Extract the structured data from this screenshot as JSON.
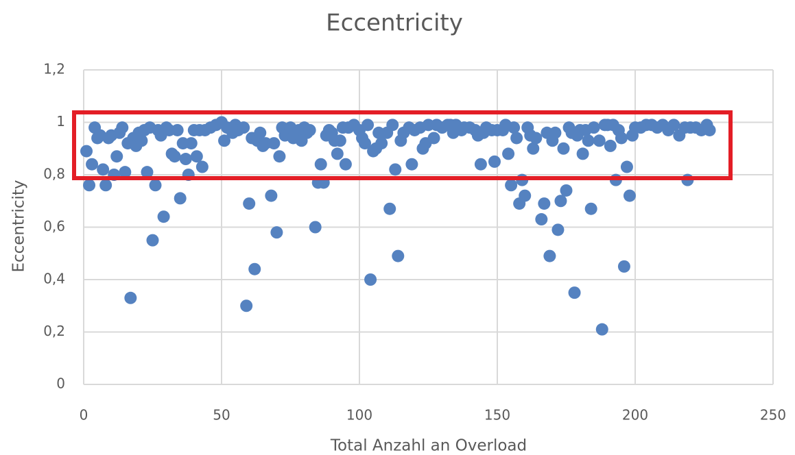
{
  "chart_data": {
    "type": "scatter",
    "title": "Eccentricity",
    "xlabel": "Total Anzahl an Overload",
    "ylabel": "Eccentricity",
    "color": "#5582c0",
    "grid": true,
    "xlim": [
      0,
      250
    ],
    "xticks": [
      0,
      50,
      100,
      150,
      200,
      250
    ],
    "ylim": [
      0,
      1.2
    ],
    "yticks": [
      0,
      {
        "value": 0.2,
        "label": "0,2"
      },
      {
        "value": 0.4,
        "label": "0,4"
      },
      {
        "value": 0.6,
        "label": "0,6"
      },
      {
        "value": 0.8,
        "label": "0,8"
      },
      1,
      {
        "value": 1.2,
        "label": "1,2"
      }
    ],
    "x": [
      1,
      2,
      3,
      4,
      5,
      6,
      7,
      8,
      9,
      10,
      11,
      12,
      13,
      14,
      15,
      16,
      17,
      18,
      19,
      20,
      21,
      22,
      23,
      24,
      25,
      26,
      27,
      28,
      29,
      30,
      31,
      32,
      33,
      34,
      35,
      36,
      37,
      38,
      39,
      40,
      41,
      42,
      43,
      44,
      46,
      48,
      50,
      51,
      52,
      54,
      55,
      56,
      58,
      59,
      60,
      61,
      62,
      63,
      64,
      65,
      66,
      68,
      69,
      70,
      71,
      72,
      73,
      75,
      76,
      78,
      79,
      80,
      81,
      82,
      84,
      85,
      86,
      87,
      88,
      89,
      90,
      91,
      92,
      93,
      94,
      95,
      96,
      98,
      100,
      101,
      102,
      103,
      104,
      105,
      106,
      107,
      108,
      110,
      111,
      112,
      113,
      114,
      115,
      116,
      118,
      119,
      120,
      122,
      123,
      124,
      125,
      127,
      128,
      130,
      132,
      133,
      134,
      135,
      137,
      138,
      140,
      142,
      143,
      144,
      145,
      146,
      148,
      149,
      150,
      152,
      153,
      154,
      155,
      156,
      157,
      158,
      159,
      160,
      161,
      162,
      163,
      164,
      166,
      167,
      168,
      169,
      170,
      171,
      172,
      173,
      174,
      175,
      176,
      177,
      178,
      179,
      180,
      181,
      182,
      183,
      184,
      185,
      187,
      188,
      189,
      190,
      191,
      192,
      193,
      194,
      195,
      196,
      197,
      198,
      199,
      200,
      202,
      204,
      206,
      208,
      210,
      212,
      214,
      216,
      218,
      219,
      220,
      222,
      224,
      226,
      227
    ],
    "values": [
      0.89,
      0.76,
      0.84,
      0.98,
      0.94,
      0.95,
      0.82,
      0.76,
      0.94,
      0.95,
      0.8,
      0.87,
      0.96,
      0.98,
      0.81,
      0.92,
      0.33,
      0.94,
      0.91,
      0.96,
      0.93,
      0.97,
      0.81,
      0.98,
      0.55,
      0.76,
      0.97,
      0.95,
      0.64,
      0.98,
      0.97,
      0.88,
      0.87,
      0.97,
      0.71,
      0.92,
      0.86,
      0.8,
      0.92,
      0.97,
      0.87,
      0.97,
      0.83,
      0.97,
      0.98,
      0.99,
      1.0,
      0.93,
      0.98,
      0.96,
      0.99,
      0.97,
      0.98,
      0.3,
      0.69,
      0.94,
      0.44,
      0.93,
      0.96,
      0.91,
      0.92,
      0.72,
      0.92,
      0.58,
      0.87,
      0.98,
      0.95,
      0.98,
      0.94,
      0.97,
      0.93,
      0.98,
      0.96,
      0.97,
      0.6,
      0.77,
      0.84,
      0.77,
      0.95,
      0.97,
      0.96,
      0.93,
      0.88,
      0.93,
      0.98,
      0.84,
      0.98,
      0.99,
      0.97,
      0.94,
      0.92,
      0.99,
      0.4,
      0.89,
      0.9,
      0.96,
      0.92,
      0.96,
      0.67,
      0.99,
      0.82,
      0.49,
      0.93,
      0.96,
      0.98,
      0.84,
      0.97,
      0.98,
      0.9,
      0.92,
      0.99,
      0.94,
      0.99,
      0.98,
      0.99,
      0.99,
      0.96,
      0.99,
      0.97,
      0.98,
      0.98,
      0.97,
      0.95,
      0.84,
      0.96,
      0.98,
      0.97,
      0.85,
      0.97,
      0.97,
      0.99,
      0.88,
      0.76,
      0.98,
      0.94,
      0.69,
      0.78,
      0.72,
      0.98,
      0.95,
      0.9,
      0.94,
      0.63,
      0.69,
      0.96,
      0.49,
      0.93,
      0.96,
      0.59,
      0.7,
      0.9,
      0.74,
      0.98,
      0.96,
      0.35,
      0.95,
      0.97,
      0.88,
      0.97,
      0.93,
      0.67,
      0.98,
      0.93,
      0.21,
      0.99,
      0.99,
      0.91,
      0.99,
      0.78,
      0.97,
      0.94,
      0.45,
      0.83,
      0.72,
      0.95,
      0.98,
      0.98,
      0.99,
      0.99,
      0.98,
      0.99,
      0.97,
      0.99,
      0.95,
      0.98,
      0.78,
      0.98,
      0.98,
      0.97,
      0.99,
      0.97
    ]
  }
}
